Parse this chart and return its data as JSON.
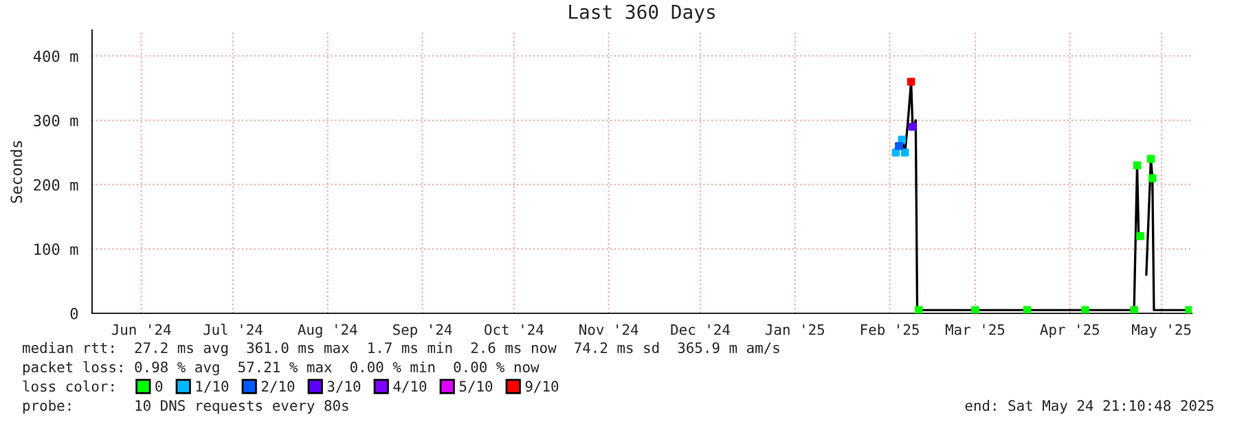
{
  "chart_data": {
    "type": "line",
    "title": "Last 360 Days",
    "ylabel": "Seconds",
    "legend_title": "loss color:",
    "legend": "bottom",
    "grid": true,
    "marker": "square",
    "xlim": [
      "2024-05-29T21:10",
      "2025-05-24T21:10"
    ],
    "xticks": [
      {
        "value": "2024-06-15",
        "label": "Jun '24"
      },
      {
        "value": "2024-07-15",
        "label": "Jul '24"
      },
      {
        "value": "2024-08-15",
        "label": "Aug '24"
      },
      {
        "value": "2024-09-15",
        "label": "Sep '24"
      },
      {
        "value": "2024-10-15",
        "label": "Oct '24"
      },
      {
        "value": "2024-11-15",
        "label": "Nov '24"
      },
      {
        "value": "2024-12-15",
        "label": "Dec '24"
      },
      {
        "value": "2025-01-15",
        "label": "Jan '25"
      },
      {
        "value": "2025-02-15",
        "label": "Feb '25"
      },
      {
        "value": "2025-03-15",
        "label": "Mar '25"
      },
      {
        "value": "2025-04-15",
        "label": "Apr '25"
      },
      {
        "value": "2025-05-15",
        "label": "May '25"
      }
    ],
    "ylim": [
      0,
      440
    ],
    "yticks": [
      0,
      {
        "value": 100,
        "label": "100 m"
      },
      {
        "value": 200,
        "label": "200 m"
      },
      {
        "value": 300,
        "label": "300 m"
      },
      {
        "value": 400,
        "label": "400 m"
      }
    ],
    "series": [
      {
        "color": "#000000",
        "marker": "none",
        "x": [
          "2025-02-17",
          "2025-02-18",
          "2025-02-19",
          "2025-02-20",
          "2025-02-21",
          "2025-02-22",
          "2025-02-22T12:00",
          "2025-02-23",
          "2025-02-23T12:00",
          "2025-02-24",
          "2025-02-24T12:00",
          "2025-03-15",
          "2025-04-01",
          "2025-04-20",
          "2025-05-06",
          "2025-05-07",
          "2025-05-07T12:00",
          "2025-05-08",
          "2025-05-09",
          "2025-05-10",
          "2025-05-11T12:00",
          "2025-05-12",
          "2025-05-12T12:00",
          "2025-05-24"
        ],
        "values": [
          250,
          260,
          270,
          250,
          300,
          360,
          290,
          290,
          300,
          10,
          5,
          5,
          5,
          5,
          5,
          230,
          120,
          120,
          null,
          60,
          240,
          210,
          5,
          5
        ]
      },
      {
        "name": "0",
        "color": "#00ff00",
        "type": "scatter",
        "x": [
          "2025-02-24T12:00",
          "2025-03-15",
          "2025-04-01",
          "2025-04-20",
          "2025-05-06",
          "2025-05-07",
          "2025-05-08",
          "2025-05-11T12:00",
          "2025-05-12",
          "2025-05-24"
        ],
        "values": [
          5,
          5,
          5,
          5,
          5,
          230,
          120,
          240,
          210,
          5
        ]
      },
      {
        "name": "1/10",
        "color": "#00b8ff",
        "type": "scatter",
        "x": [
          "2025-02-17",
          "2025-02-19",
          "2025-02-20"
        ],
        "values": [
          250,
          270,
          250
        ]
      },
      {
        "name": "2/10",
        "color": "#0059ff",
        "type": "scatter",
        "x": [
          "2025-02-18"
        ],
        "values": [
          260
        ]
      },
      {
        "name": "3/10",
        "color": "#5e00ff",
        "type": "scatter",
        "x": [
          "2025-02-22T12:00"
        ],
        "values": [
          290
        ]
      },
      {
        "name": "4/10",
        "color": "#7e00ff",
        "type": "scatter"
      },
      {
        "name": "5/10",
        "color": "#dd00ff",
        "type": "scatter"
      },
      {
        "name": "9/10",
        "color": "#ff0000",
        "type": "scatter",
        "x": [
          "2025-02-22"
        ],
        "values": [
          360
        ]
      }
    ],
    "annotations": [
      "median rtt:  27.2 ms avg  361.0 ms max  1.7 ms min  2.6 ms now  74.2 ms sd  365.9 m am/s",
      "packet loss: 0.98 % avg  57.21 % max  0.00 % min  0.00 % now",
      "probe:       10 DNS requests every 80s",
      "end: Sat May 24 21:10:48 2025"
    ]
  }
}
